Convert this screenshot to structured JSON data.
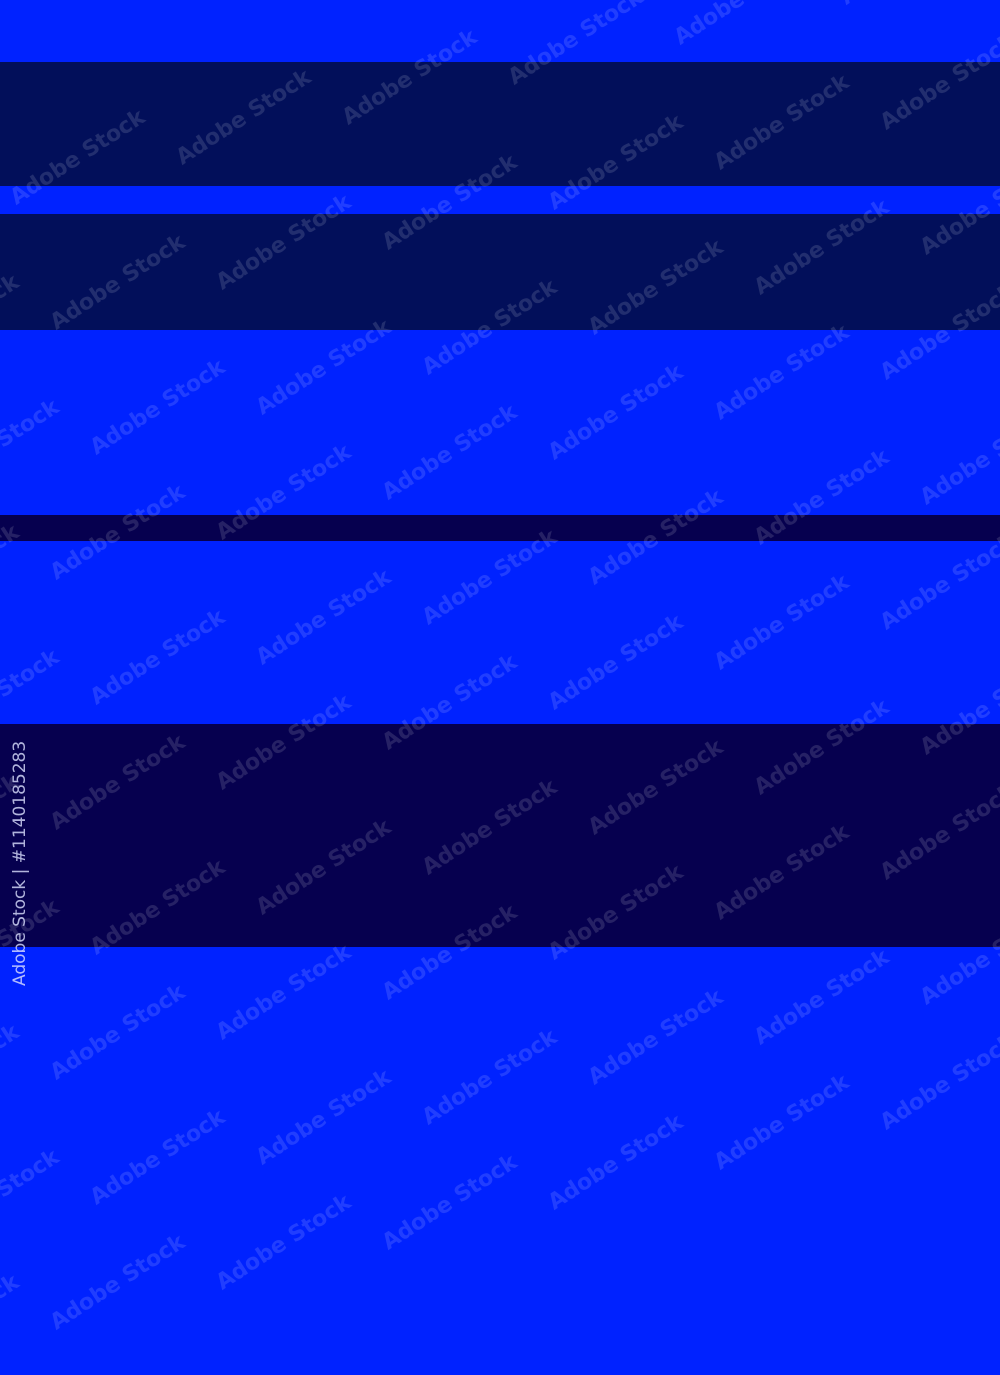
{
  "colors": {
    "bright": "#0022ff",
    "dark": "#020f5a",
    "darkest": "#06004f"
  },
  "stripes": [
    "bright",
    "dark",
    "bright",
    "dark",
    "bright",
    "darkest",
    "bright",
    "darkest",
    "bright"
  ],
  "watermark": {
    "text": "Adobe Stock",
    "id_label": "Adobe Stock | #1140185283"
  }
}
